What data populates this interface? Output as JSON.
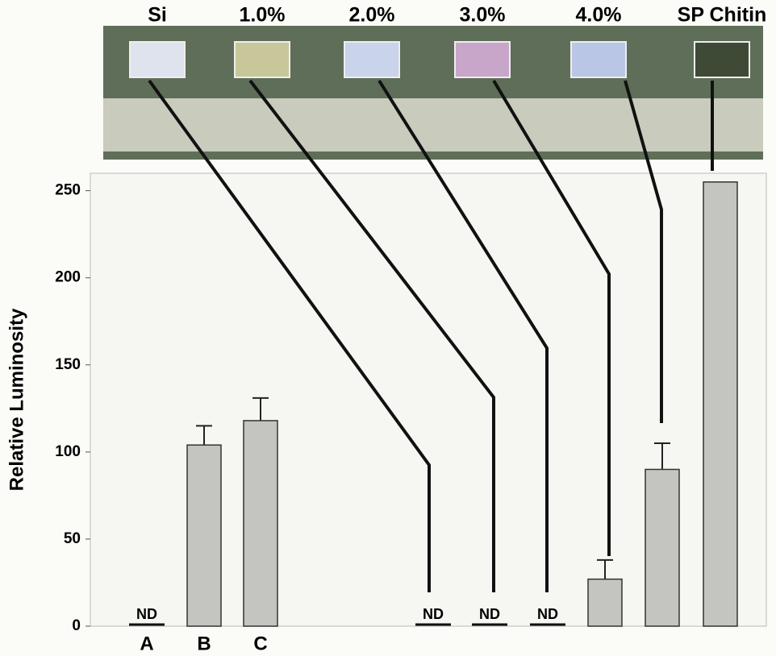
{
  "chart_data": {
    "type": "bar",
    "y_label": "Relative Luminosity",
    "categories": [
      "A",
      "B",
      "C",
      "Si",
      "1.0%",
      "2.0%",
      "3.0%",
      "4.0%",
      "SP Chitin"
    ],
    "values": [
      null,
      104,
      118,
      null,
      null,
      null,
      27,
      90,
      255
    ],
    "value_labels": [
      "ND",
      null,
      null,
      "ND",
      "ND",
      "ND",
      null,
      null,
      null
    ],
    "errors": [
      null,
      11,
      13,
      null,
      null,
      null,
      11,
      15,
      null
    ],
    "color": "#c4c4c0",
    "ylim": [
      0,
      260
    ],
    "yticks": [
      0,
      50,
      100,
      150,
      200,
      250
    ]
  }
}
